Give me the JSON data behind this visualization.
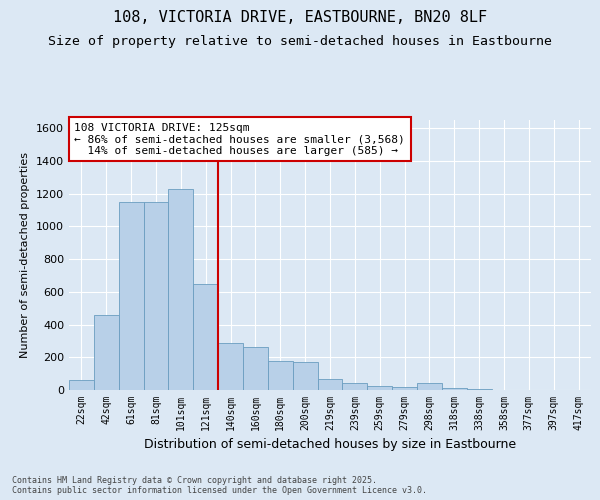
{
  "title": "108, VICTORIA DRIVE, EASTBOURNE, BN20 8LF",
  "subtitle": "Size of property relative to semi-detached houses in Eastbourne",
  "xlabel": "Distribution of semi-detached houses by size in Eastbourne",
  "ylabel": "Number of semi-detached properties",
  "footer": "Contains HM Land Registry data © Crown copyright and database right 2025.\nContains public sector information licensed under the Open Government Licence v3.0.",
  "bin_labels": [
    "22sqm",
    "42sqm",
    "61sqm",
    "81sqm",
    "101sqm",
    "121sqm",
    "140sqm",
    "160sqm",
    "180sqm",
    "200sqm",
    "219sqm",
    "239sqm",
    "259sqm",
    "279sqm",
    "298sqm",
    "318sqm",
    "338sqm",
    "358sqm",
    "377sqm",
    "397sqm",
    "417sqm"
  ],
  "bar_values": [
    60,
    460,
    1150,
    1150,
    1230,
    650,
    285,
    265,
    175,
    170,
    65,
    45,
    25,
    20,
    40,
    10,
    5,
    3,
    2,
    1,
    1
  ],
  "bar_color": "#b8d0e8",
  "bar_edge_color": "#6a9dc0",
  "vline_color": "#cc0000",
  "vline_x": 6.0,
  "annotation_line1": "108 VICTORIA DRIVE: 125sqm",
  "annotation_line2": "← 86% of semi-detached houses are smaller (3,568)",
  "annotation_line3": "  14% of semi-detached houses are larger (585) →",
  "ylim": [
    0,
    1650
  ],
  "yticks": [
    0,
    200,
    400,
    600,
    800,
    1000,
    1200,
    1400,
    1600
  ],
  "background_color": "#dce8f4",
  "plot_bg_color": "#dce8f4",
  "grid_color": "#ffffff",
  "title_fontsize": 11,
  "subtitle_fontsize": 9.5,
  "annotation_fontsize": 8,
  "ylabel_fontsize": 8,
  "xlabel_fontsize": 9,
  "tick_fontsize": 7,
  "ytick_fontsize": 8,
  "annotation_box_facecolor": "#ffffff",
  "annotation_box_edgecolor": "#cc0000",
  "footer_fontsize": 6
}
